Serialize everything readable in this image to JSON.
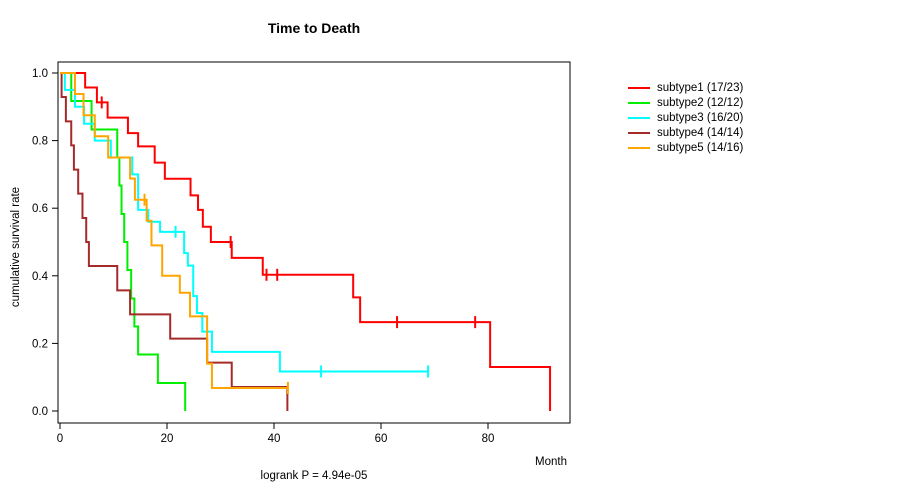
{
  "chart_data": {
    "type": "line",
    "variant": "kaplan-meier-step",
    "title": "Time to Death",
    "xlabel": "Month",
    "ylabel": "cumulative survival rate",
    "footnote": "logrank P = 4.94e-05",
    "xlim": [
      0,
      95
    ],
    "ylim": [
      0.0,
      1.0
    ],
    "x_ticks": [
      0,
      20,
      40,
      60,
      80
    ],
    "y_ticks": [
      0.0,
      0.2,
      0.4,
      0.6,
      0.8,
      1.0
    ],
    "grid": false,
    "legend_position": "right-outside",
    "series": [
      {
        "name": "subtype1",
        "label": "subtype1 (17/23)",
        "color": "#ff0000",
        "events": 17,
        "total": 23,
        "points": [
          [
            0,
            1.0
          ],
          [
            4.7,
            0.957
          ],
          [
            6.9,
            0.913
          ],
          [
            8.9,
            0.868
          ],
          [
            12.7,
            0.822
          ],
          [
            14.6,
            0.783
          ],
          [
            17.7,
            0.735
          ],
          [
            19.6,
            0.687
          ],
          [
            24.4,
            0.638
          ],
          [
            25.8,
            0.595
          ],
          [
            26.7,
            0.545
          ],
          [
            28.2,
            0.5
          ],
          [
            32.1,
            0.453
          ],
          [
            37.9,
            0.403
          ],
          [
            54.8,
            0.336
          ],
          [
            56.1,
            0.263
          ],
          [
            80.4,
            0.13
          ],
          [
            91.6,
            0
          ]
        ],
        "censor_marks": [
          [
            7.8,
            0.913
          ],
          [
            31.9,
            0.5
          ],
          [
            38.6,
            0.403
          ],
          [
            40.6,
            0.403
          ],
          [
            63.0,
            0.263
          ],
          [
            77.6,
            0.263
          ]
        ],
        "end_time": 91.6
      },
      {
        "name": "subtype2",
        "label": "subtype2 (12/12)",
        "color": "#00ee00",
        "events": 12,
        "total": 12,
        "points": [
          [
            0,
            1.0
          ],
          [
            2.1,
            0.917
          ],
          [
            5.9,
            0.833
          ],
          [
            10.7,
            0.75
          ],
          [
            11.1,
            0.667
          ],
          [
            11.5,
            0.583
          ],
          [
            12.0,
            0.5
          ],
          [
            12.6,
            0.417
          ],
          [
            13.3,
            0.333
          ],
          [
            13.9,
            0.25
          ],
          [
            14.6,
            0.167
          ],
          [
            18.3,
            0.083
          ],
          [
            23.4,
            0
          ]
        ],
        "censor_marks": [],
        "end_time": 23.4
      },
      {
        "name": "subtype3",
        "label": "subtype3 (16/20)",
        "color": "#00ffff",
        "events": 16,
        "total": 20,
        "points": [
          [
            0,
            1.0
          ],
          [
            0.9,
            0.95
          ],
          [
            2.8,
            0.9
          ],
          [
            4.5,
            0.85
          ],
          [
            6.5,
            0.8
          ],
          [
            9.5,
            0.75
          ],
          [
            13.5,
            0.7
          ],
          [
            14.6,
            0.595
          ],
          [
            16.5,
            0.56
          ],
          [
            18.7,
            0.53
          ],
          [
            23.2,
            0.467
          ],
          [
            23.9,
            0.43
          ],
          [
            24.9,
            0.34
          ],
          [
            25.6,
            0.29
          ],
          [
            26.6,
            0.235
          ],
          [
            28.4,
            0.175
          ],
          [
            41.1,
            0.117
          ]
        ],
        "censor_marks": [
          [
            21.6,
            0.53
          ],
          [
            48.8,
            0.117
          ],
          [
            68.8,
            0.117
          ]
        ],
        "end_time": 68.8
      },
      {
        "name": "subtype4",
        "label": "subtype4 (14/14)",
        "color": "#a52a2a",
        "events": 14,
        "total": 14,
        "points": [
          [
            0,
            1.0
          ],
          [
            0.3,
            0.929
          ],
          [
            1.1,
            0.857
          ],
          [
            2.1,
            0.786
          ],
          [
            2.6,
            0.714
          ],
          [
            3.4,
            0.643
          ],
          [
            4.2,
            0.571
          ],
          [
            4.9,
            0.5
          ],
          [
            5.4,
            0.429
          ],
          [
            10.7,
            0.357
          ],
          [
            13.1,
            0.286
          ],
          [
            20.6,
            0.214
          ],
          [
            27.5,
            0.143
          ],
          [
            32.1,
            0.071
          ],
          [
            42.5,
            0
          ]
        ],
        "censor_marks": [],
        "end_time": 42.5
      },
      {
        "name": "subtype5",
        "label": "subtype5 (14/16)",
        "color": "#ffa500",
        "events": 14,
        "total": 16,
        "points": [
          [
            0,
            1.0
          ],
          [
            2.8,
            0.938
          ],
          [
            4.4,
            0.875
          ],
          [
            6.5,
            0.813
          ],
          [
            9.0,
            0.75
          ],
          [
            13.1,
            0.688
          ],
          [
            14.0,
            0.625
          ],
          [
            16.2,
            0.563
          ],
          [
            17.1,
            0.49
          ],
          [
            19.1,
            0.4
          ],
          [
            22.4,
            0.35
          ],
          [
            24.3,
            0.28
          ],
          [
            27.5,
            0.14
          ],
          [
            28.4,
            0.068
          ]
        ],
        "censor_marks": [
          [
            15.8,
            0.625
          ],
          [
            42.6,
            0.068
          ]
        ],
        "end_time": 42.6
      }
    ]
  }
}
